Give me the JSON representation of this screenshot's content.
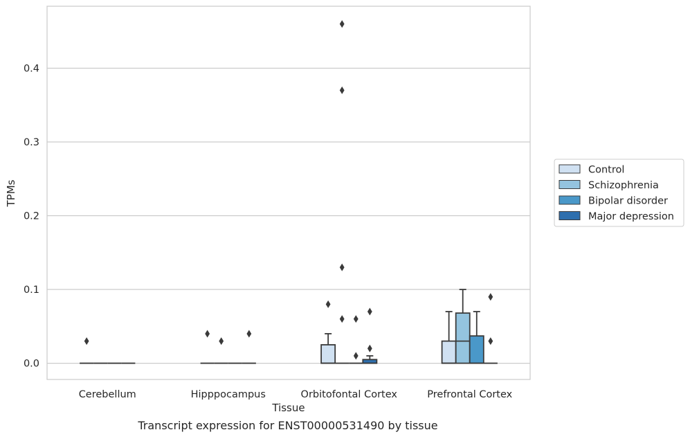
{
  "chart_data": {
    "type": "box",
    "xlabel": "Tissue",
    "ylabel": "TPMs",
    "caption": "Transcript expression for ENST00000531490 by tissue",
    "categories": [
      "Cerebellum",
      "Hipppocampus",
      "Orbitofontal Cortex",
      "Prefrontal Cortex"
    ],
    "ylim": [
      -0.022,
      0.484
    ],
    "yticks": [
      0.0,
      0.1,
      0.2,
      0.3,
      0.4
    ],
    "ytick_labels": [
      "0.0",
      "0.1",
      "0.2",
      "0.3",
      "0.4"
    ],
    "grid": true,
    "legend_position": "right",
    "series": [
      {
        "name": "Control",
        "color": "#d0e1f2",
        "boxes": [
          {
            "q1": 0,
            "median": 0,
            "q3": 0,
            "whisker_low": 0,
            "whisker_high": 0,
            "outliers": [
              0.03
            ]
          },
          {
            "q1": 0,
            "median": 0,
            "q3": 0,
            "whisker_low": 0,
            "whisker_high": 0,
            "outliers": [
              0.04
            ]
          },
          {
            "q1": 0,
            "median": 0,
            "q3": 0.025,
            "whisker_low": 0,
            "whisker_high": 0.04,
            "outliers": [
              0.08
            ]
          },
          {
            "q1": 0,
            "median": 0,
            "q3": 0.03,
            "whisker_low": 0,
            "whisker_high": 0.07,
            "outliers": []
          }
        ]
      },
      {
        "name": "Schizophrenia",
        "color": "#94c4df",
        "boxes": [
          {
            "q1": 0,
            "median": 0,
            "q3": 0,
            "whisker_low": 0,
            "whisker_high": 0,
            "outliers": []
          },
          {
            "q1": 0,
            "median": 0,
            "q3": 0,
            "whisker_low": 0,
            "whisker_high": 0,
            "outliers": [
              0.03
            ]
          },
          {
            "q1": 0,
            "median": 0,
            "q3": 0,
            "whisker_low": 0,
            "whisker_high": 0,
            "outliers": [
              0.46,
              0.37,
              0.13,
              0.06
            ]
          },
          {
            "q1": 0,
            "median": 0.03,
            "q3": 0.068,
            "whisker_low": 0,
            "whisker_high": 0.1,
            "outliers": []
          }
        ]
      },
      {
        "name": "Bipolar disorder",
        "color": "#4a98c9",
        "boxes": [
          {
            "q1": 0,
            "median": 0,
            "q3": 0,
            "whisker_low": 0,
            "whisker_high": 0,
            "outliers": []
          },
          {
            "q1": 0,
            "median": 0,
            "q3": 0,
            "whisker_low": 0,
            "whisker_high": 0,
            "outliers": []
          },
          {
            "q1": 0,
            "median": 0,
            "q3": 0,
            "whisker_low": 0,
            "whisker_high": 0,
            "outliers": [
              0.06,
              0.01
            ]
          },
          {
            "q1": 0,
            "median": 0,
            "q3": 0.037,
            "whisker_low": 0,
            "whisker_high": 0.07,
            "outliers": []
          }
        ]
      },
      {
        "name": "Major depression",
        "color": "#2e6fae",
        "boxes": [
          {
            "q1": 0,
            "median": 0,
            "q3": 0,
            "whisker_low": 0,
            "whisker_high": 0,
            "outliers": []
          },
          {
            "q1": 0,
            "median": 0,
            "q3": 0,
            "whisker_low": 0,
            "whisker_high": 0,
            "outliers": [
              0.04
            ]
          },
          {
            "q1": 0,
            "median": 0,
            "q3": 0.005,
            "whisker_low": 0,
            "whisker_high": 0.01,
            "outliers": [
              0.07,
              0.02
            ]
          },
          {
            "q1": 0,
            "median": 0,
            "q3": 0,
            "whisker_low": 0,
            "whisker_high": 0,
            "outliers": [
              0.09,
              0.03
            ]
          }
        ]
      }
    ]
  }
}
